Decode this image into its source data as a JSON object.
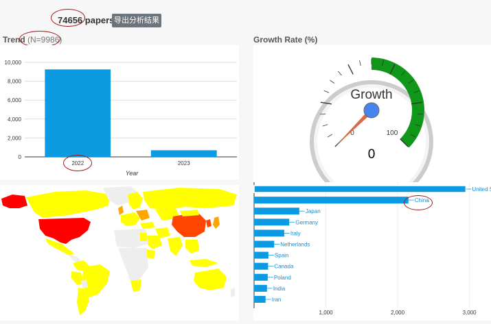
{
  "header": {
    "count": "74656",
    "count_suffix": "papers.",
    "export_label": "导出分析结果"
  },
  "trend": {
    "title": "Trend",
    "n_label": "(N=9986)",
    "chart_data": {
      "type": "bar",
      "categories": [
        "2022",
        "2023"
      ],
      "values": [
        9250,
        700
      ],
      "xlabel": "Year",
      "ylabel": "",
      "ylim": [
        0,
        10000
      ],
      "yticks": [
        0,
        2000,
        4000,
        6000,
        8000,
        10000
      ],
      "ytick_labels": [
        "0",
        "2,000",
        "4,000",
        "6,000",
        "8,000",
        "10,000"
      ],
      "color": "#0c9be1",
      "grid": true
    }
  },
  "growth": {
    "title": "Growth Rate (%)",
    "gauge": {
      "label": "Growth",
      "value": 0,
      "value_text": "0",
      "min": 0,
      "max": 100,
      "min_label": "0",
      "max_label": "100",
      "band_from": 100,
      "band_to": 124,
      "band_color": "#109618",
      "needle_color": "#dc6a43"
    }
  },
  "map": {
    "colors": {
      "low": "#ffff00",
      "mid": "#ffa500",
      "high": "#ff4500",
      "max": "#ff0000",
      "none": "#eeeeee"
    }
  },
  "countries": {
    "chart_data": {
      "type": "bar",
      "orientation": "horizontal",
      "categories": [
        "United States",
        "China",
        "Japan",
        "Germany",
        "Italy",
        "Netherlands",
        "Spain",
        "Canada",
        "Poland",
        "India",
        "Iran"
      ],
      "values": [
        2950,
        2150,
        630,
        490,
        420,
        280,
        200,
        195,
        190,
        180,
        160
      ],
      "xlim": [
        0,
        3300
      ],
      "xticks": [
        1000,
        2000,
        3000
      ],
      "xtick_labels": [
        "1,000",
        "2,000",
        "3,000"
      ],
      "color": "#0c9be1"
    }
  }
}
